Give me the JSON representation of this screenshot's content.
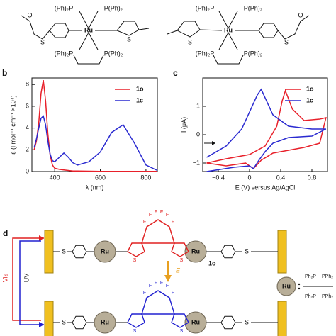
{
  "panel_a": {
    "labels": [
      "(Ph)₂P",
      "P(Ph)₂",
      "Ru",
      "(Ph)₂P",
      "P(Ph)₂",
      "S",
      "S",
      "(Ph)₂P",
      "P(Ph)₂",
      "Ru",
      "(Ph)₂P",
      "P(Ph)₂",
      "O",
      "S",
      "S",
      "O"
    ]
  },
  "chart_data": [
    {
      "panel": "b",
      "type": "line",
      "xlabel": "λ (nm)",
      "ylabel": "ε (l mol⁻¹ cm⁻¹ ×10⁴)",
      "x": [
        310,
        320,
        330,
        340,
        350,
        360,
        370,
        380,
        390,
        400,
        420,
        440,
        460,
        480,
        500,
        550,
        600,
        650,
        700,
        750,
        800,
        850
      ],
      "series": [
        {
          "name": "1o",
          "color": "#e8202a",
          "values": [
            2.0,
            2.8,
            4.5,
            7.2,
            8.4,
            6.5,
            3.5,
            1.5,
            0.6,
            0.3,
            0.2,
            0.15,
            0.1,
            0.05,
            0.05,
            0.03,
            0.02,
            0.02,
            0.02,
            0.02,
            0.02,
            0.02
          ]
        },
        {
          "name": "1c",
          "color": "#2a2ad0",
          "values": [
            2.2,
            3.0,
            4.0,
            4.9,
            5.1,
            4.3,
            2.8,
            1.6,
            1.0,
            0.9,
            1.3,
            1.7,
            1.3,
            0.8,
            0.6,
            0.9,
            1.8,
            3.6,
            4.3,
            2.6,
            0.6,
            0.1
          ]
        }
      ],
      "xlim": [
        300,
        850
      ],
      "ylim": [
        0,
        8.6
      ],
      "xticks": [
        400,
        600,
        800
      ],
      "yticks": [
        0,
        2,
        4,
        6,
        8
      ]
    },
    {
      "panel": "c",
      "type": "line",
      "xlabel": "E (V) versus Ag/AgCl",
      "ylabel": "I (μA)",
      "series": [
        {
          "name": "1o",
          "color": "#e8202a",
          "x": [
            -0.55,
            -0.3,
            0,
            0.2,
            0.35,
            0.42,
            0.46,
            0.55,
            0.7,
            0.9,
            0.98,
            0.9,
            0.7,
            0.5,
            0.3,
            0.15,
            0.05,
            -0.05,
            -0.3,
            -0.55
          ],
          "values": [
            -1.0,
            -0.85,
            -0.7,
            -0.4,
            0.3,
            1.2,
            1.55,
            0.9,
            0.5,
            0.55,
            0.6,
            -0.3,
            -0.45,
            -0.55,
            -0.65,
            -0.9,
            -1.2,
            -1.0,
            -1.1,
            -1.0
          ]
        },
        {
          "name": "1c",
          "color": "#2a2ad0",
          "x": [
            -0.55,
            -0.3,
            -0.1,
            0,
            0.1,
            0.15,
            0.2,
            0.3,
            0.5,
            0.8,
            0.98,
            0.8,
            0.5,
            0.3,
            0.2,
            0.12,
            0.05,
            0,
            -0.2,
            -0.55
          ],
          "values": [
            -0.8,
            -0.4,
            0.2,
            0.8,
            1.4,
            1.6,
            1.3,
            0.7,
            0.3,
            0.2,
            0.2,
            -0.05,
            -0.1,
            -0.3,
            -0.6,
            -0.9,
            -1.2,
            -1.1,
            -1.15,
            -1.3
          ]
        }
      ],
      "xlim": [
        -0.6,
        1.0
      ],
      "ylim": [
        -1.3,
        2.0
      ],
      "xticks": [
        {
          "value": -0.4,
          "label": "−0.4"
        },
        0,
        0.4,
        0.8
      ],
      "yticks": [
        {
          "value": -1,
          "label": "−1"
        },
        0,
        1
      ]
    }
  ],
  "panel_d": {
    "panel": "d",
    "top": {
      "labels": [
        "S",
        "Ru",
        "Ru",
        "S",
        "1o"
      ],
      "fluorines": [
        "F",
        "F",
        "F",
        "F",
        "F",
        "F"
      ],
      "ring_s": [
        "S",
        "S"
      ]
    },
    "bottom": {
      "labels": [
        "S",
        "Ru",
        "Ru",
        "S"
      ],
      "fluorines": [
        "F",
        "F",
        "F",
        "F",
        "F",
        "F"
      ],
      "ring_s": [
        "S",
        "S"
      ]
    },
    "switch": [
      "E",
      "Vis",
      "UV"
    ],
    "key": {
      "ball": "Ru",
      "labels": [
        "Ph₂P",
        "PPh₂",
        "Ph₂P",
        "PPh₂"
      ]
    }
  }
}
